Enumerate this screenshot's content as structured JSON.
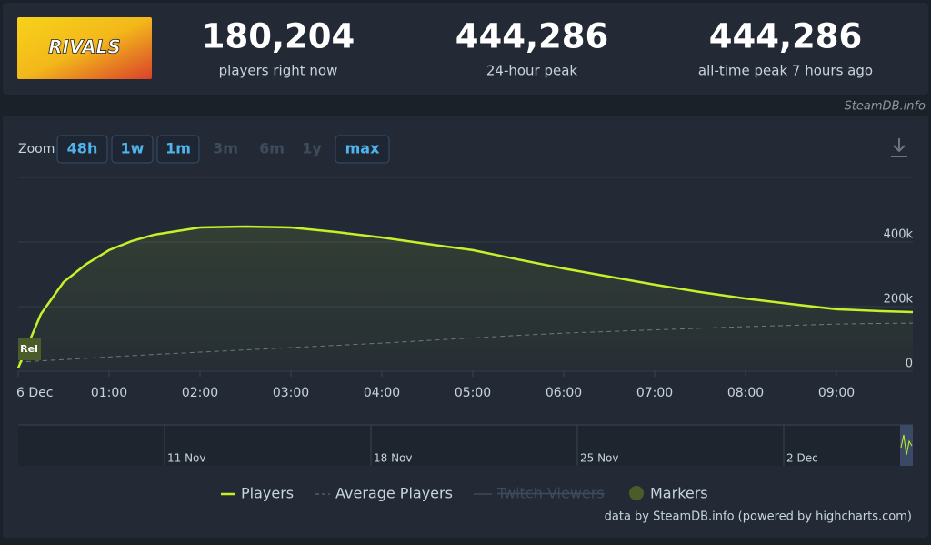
{
  "header": {
    "logo_text": "RIVALS",
    "stats": [
      {
        "value": "180,204",
        "label": "players right now"
      },
      {
        "value": "444,286",
        "label": "24-hour peak"
      },
      {
        "value": "444,286",
        "label": "all-time peak 7 hours ago"
      }
    ],
    "credit": "SteamDB.info"
  },
  "zoom": {
    "label": "Zoom",
    "buttons": [
      {
        "label": "48h",
        "enabled": true
      },
      {
        "label": "1w",
        "enabled": true
      },
      {
        "label": "1m",
        "enabled": true
      },
      {
        "label": "3m",
        "enabled": false
      },
      {
        "label": "6m",
        "enabled": false
      },
      {
        "label": "1y",
        "enabled": false
      },
      {
        "label": "max",
        "enabled": true
      }
    ]
  },
  "chart_data": {
    "type": "line",
    "x": [
      0,
      0.25,
      0.5,
      0.75,
      1,
      1.25,
      1.5,
      2,
      2.5,
      3,
      3.5,
      4,
      4.5,
      5,
      5.5,
      6,
      6.5,
      7,
      7.5,
      8,
      8.5,
      9,
      9.5,
      9.84
    ],
    "xlim": [
      0,
      9.84
    ],
    "xticks": [
      {
        "value": 0,
        "label": "6 Dec"
      },
      {
        "value": 1,
        "label": "01:00"
      },
      {
        "value": 2,
        "label": "02:00"
      },
      {
        "value": 3,
        "label": "03:00"
      },
      {
        "value": 4,
        "label": "04:00"
      },
      {
        "value": 5,
        "label": "05:00"
      },
      {
        "value": 6,
        "label": "06:00"
      },
      {
        "value": 7,
        "label": "07:00"
      },
      {
        "value": 8,
        "label": "08:00"
      },
      {
        "value": 9,
        "label": "09:00"
      }
    ],
    "ylim": [
      0,
      600000
    ],
    "yticks": [
      0,
      {
        "value": 200000,
        "label": "200k"
      },
      {
        "value": 400000,
        "label": "400k"
      }
    ],
    "grid": true,
    "series": [
      {
        "name": "Players",
        "color": "#c4f12a",
        "dashed": false,
        "values": [
          10000,
          177000,
          276000,
          332000,
          375000,
          403000,
          423000,
          445000,
          448000,
          445000,
          431000,
          414000,
          394000,
          375000,
          346000,
          318000,
          293000,
          268000,
          245000,
          225000,
          208000,
          192000,
          186000,
          183000
        ]
      },
      {
        "name": "Average Players",
        "color": "#6b7580",
        "dashed": true,
        "values": [
          28000,
          32000,
          36000,
          40000,
          44000,
          48000,
          52000,
          59000,
          66000,
          73000,
          80000,
          87000,
          95000,
          103000,
          111000,
          118000,
          123000,
          128000,
          133000,
          138000,
          142000,
          146000,
          148000,
          149000
        ]
      }
    ],
    "hidden_legend": [
      {
        "name": "Twitch Viewers",
        "color": "#3d4b5c"
      }
    ],
    "markers": {
      "name": "Markers",
      "color": "#4a5c2a",
      "points": [
        {
          "x": 0,
          "label": "Rel"
        }
      ]
    },
    "navigator_labels": [
      "11 Nov",
      "18 Nov",
      "25 Nov",
      "2 Dec"
    ]
  },
  "footer": "data by SteamDB.info (powered by highcharts.com)"
}
